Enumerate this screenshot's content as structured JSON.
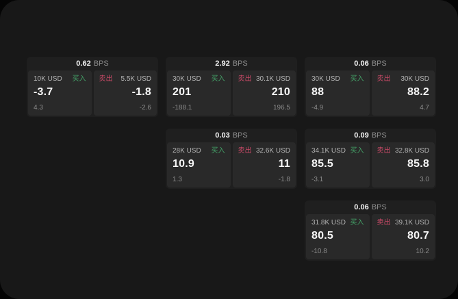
{
  "labels": {
    "buy": "买入",
    "sell": "卖出",
    "bps": "BPS"
  },
  "colors": {
    "buy": "#44a167",
    "sell": "#cb4a68",
    "value": "#f7f7f7",
    "label": "#b4b4b4",
    "sub": "#8a8a8a",
    "bps_unit": "#8d8d8d",
    "window_bg": "#181818",
    "card_bg": "#1f1f1f",
    "panel_bg": "#292929"
  },
  "cards": [
    {
      "bps": "0.62",
      "buy": {
        "amount": "10K USD",
        "value": "-3.7",
        "sub": "4.3"
      },
      "sell": {
        "amount": "5.5K USD",
        "value": "-1.8",
        "sub": "-2.6"
      }
    },
    {
      "bps": "2.92",
      "buy": {
        "amount": "30K USD",
        "value": "201",
        "sub": "-188.1"
      },
      "sell": {
        "amount": "30.1K USD",
        "value": "210",
        "sub": "196.5"
      }
    },
    {
      "bps": "0.06",
      "buy": {
        "amount": "30K USD",
        "value": "88",
        "sub": "-4.9"
      },
      "sell": {
        "amount": "30K USD",
        "value": "88.2",
        "sub": "4.7"
      }
    },
    {
      "bps": "0.03",
      "buy": {
        "amount": "28K USD",
        "value": "10.9",
        "sub": "1.3"
      },
      "sell": {
        "amount": "32.6K USD",
        "value": "11",
        "sub": "-1.8"
      }
    },
    {
      "bps": "0.09",
      "buy": {
        "amount": "34.1K USD",
        "value": "85.5",
        "sub": "-3.1"
      },
      "sell": {
        "amount": "32.8K USD",
        "value": "85.8",
        "sub": "3.0"
      }
    },
    {
      "bps": "0.06",
      "buy": {
        "amount": "31.8K USD",
        "value": "80.5",
        "sub": "-10.8"
      },
      "sell": {
        "amount": "39.1K USD",
        "value": "80.7",
        "sub": "10.2"
      }
    }
  ]
}
